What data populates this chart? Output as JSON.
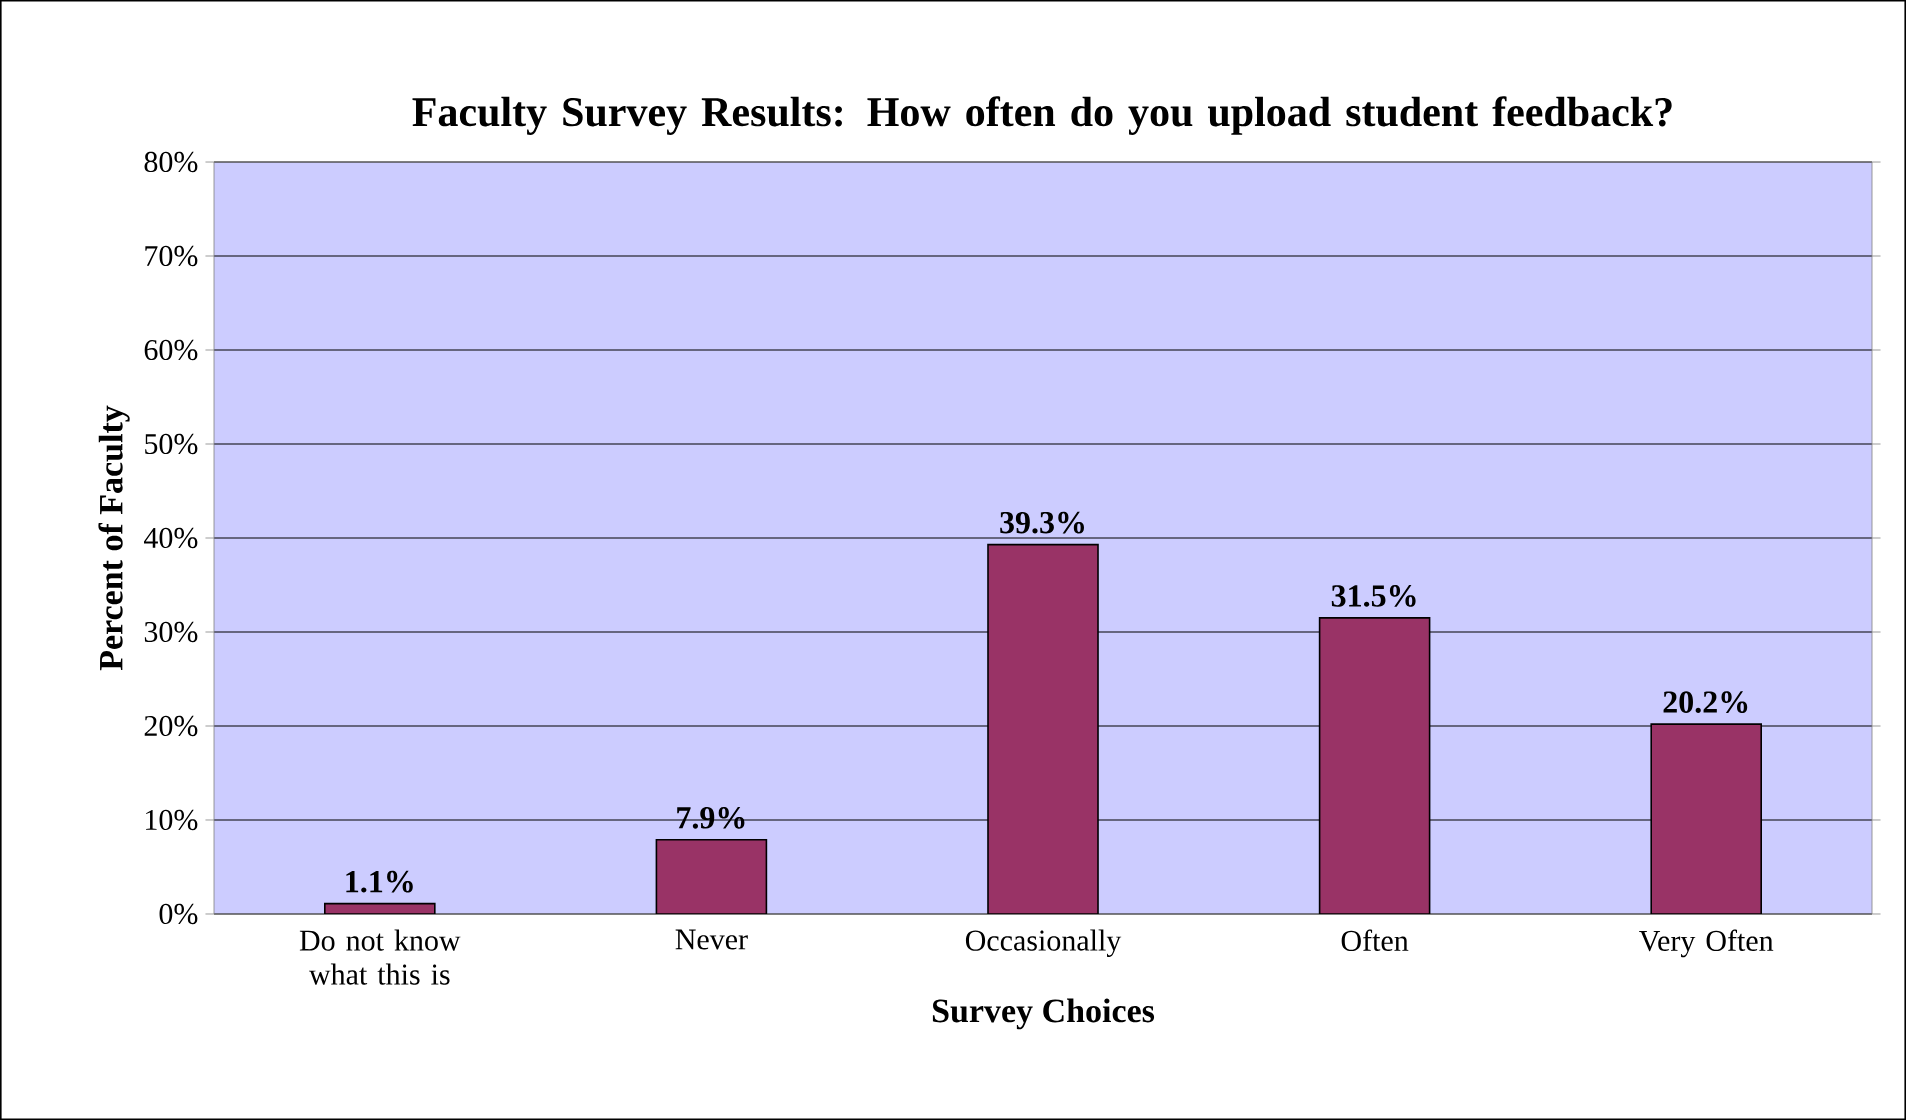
{
  "chart_data": {
    "type": "bar",
    "title": "Faculty Survey Results: How often do you upload student feedback?",
    "xlabel": "Survey Choices",
    "ylabel": "Percent of Faculty",
    "categories": [
      "Do not know what this is",
      "Never",
      "Occasionally",
      "Often",
      "Very Often"
    ],
    "values": [
      1.1,
      7.9,
      39.3,
      31.5,
      20.2
    ],
    "value_labels": [
      "1.1%",
      "7.9%",
      "39.3%",
      "31.5%",
      "20.2%"
    ],
    "color": "#993366",
    "ylim": [
      0,
      80
    ],
    "yticks": [
      {
        "value": 0,
        "label": "0%"
      },
      {
        "value": 10,
        "label": "10%"
      },
      {
        "value": 20,
        "label": "20%"
      },
      {
        "value": 30,
        "label": "30%"
      },
      {
        "value": 40,
        "label": "40%"
      },
      {
        "value": 50,
        "label": "50%"
      },
      {
        "value": 60,
        "label": "60%"
      },
      {
        "value": 70,
        "label": "70%"
      },
      {
        "value": 80,
        "label": "80%"
      }
    ],
    "grid": "y"
  }
}
